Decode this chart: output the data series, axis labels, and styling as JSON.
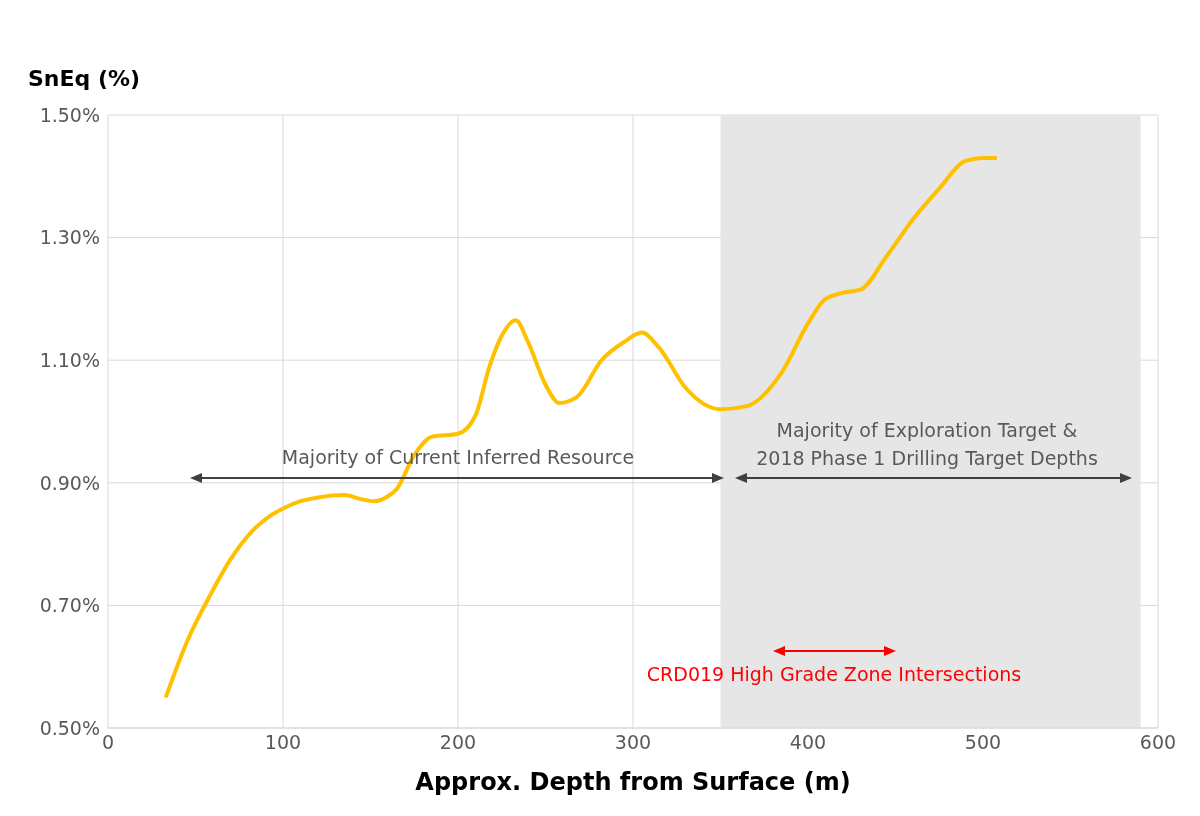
{
  "chart_data": {
    "type": "line",
    "ylabel": "SnEq  (%)",
    "xlabel": "Approx. Depth from Surface (m)",
    "x": [
      33,
      45,
      59,
      70,
      82,
      92,
      100,
      110,
      120,
      135,
      145,
      152,
      160,
      165,
      175,
      185,
      200,
      210,
      218,
      225,
      233,
      240,
      250,
      258,
      268,
      282,
      295,
      305,
      315,
      330,
      350,
      365,
      385,
      400,
      410,
      420,
      430,
      445,
      460,
      475,
      490,
      500,
      508
    ],
    "series": [
      {
        "color": "#ffc000",
        "values": [
          0.55,
          0.64,
          0.72,
          0.775,
          0.82,
          0.845,
          0.858,
          0.87,
          0.876,
          0.88,
          0.873,
          0.87,
          0.878,
          0.89,
          0.945,
          0.975,
          0.98,
          1.01,
          1.09,
          1.14,
          1.165,
          1.13,
          1.06,
          1.03,
          1.04,
          1.1,
          1.13,
          1.145,
          1.12,
          1.055,
          1.02,
          1.025,
          1.08,
          1.16,
          1.2,
          1.21,
          1.215,
          1.27,
          1.33,
          1.38,
          1.425,
          1.43,
          1.43
        ]
      }
    ],
    "xlim": [
      0,
      600
    ],
    "xticks": [
      0,
      100,
      200,
      300,
      400,
      500,
      600
    ],
    "ylim": [
      0.5,
      1.5
    ],
    "yticks": [
      {
        "value": 0.5,
        "label": "0.50%"
      },
      {
        "value": 0.7,
        "label": "0.70%"
      },
      {
        "value": 0.9,
        "label": "0.90%"
      },
      {
        "value": 1.1,
        "label": "1.10%"
      },
      {
        "value": 1.3,
        "label": "1.30%"
      },
      {
        "value": 1.5,
        "label": "1.50%"
      }
    ],
    "grid": true,
    "legend": false,
    "marker": "none",
    "line_style": "solid",
    "bands": [
      {
        "axis": "x",
        "from": 350,
        "to": 590,
        "color": "#e6e6e6"
      }
    ],
    "annotations": [
      "Majority of Current Inferred Resource",
      "Majority of Exploration Target &\n2018 Phase 1 Drilling Target Depths",
      "CRD019 High Grade Zone Intersections"
    ]
  }
}
